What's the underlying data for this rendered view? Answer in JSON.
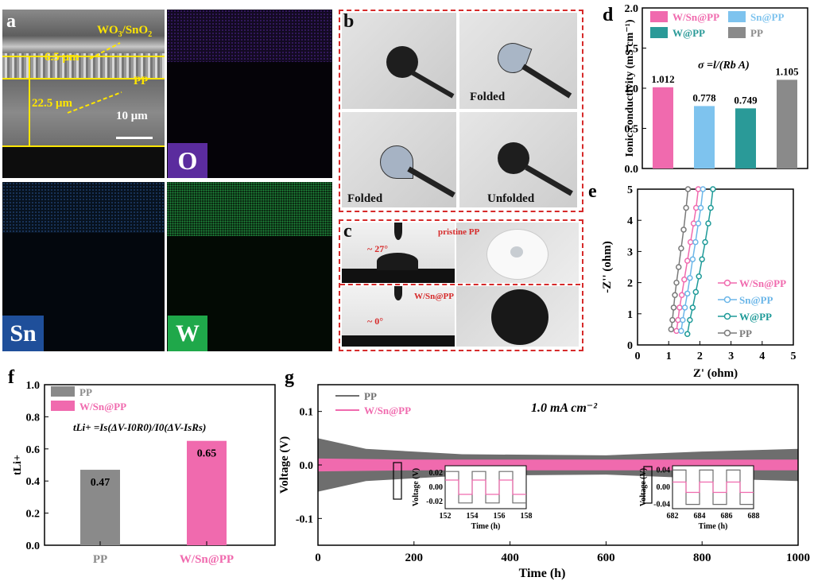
{
  "panel_a": {
    "letter": "a",
    "label_top": "WO3/SnO2",
    "label_pp": "PP",
    "thick1": "6.5 μm",
    "thick2": "22.5 μm",
    "scale": "10 μm",
    "maps": [
      "O",
      "Sn",
      "W"
    ],
    "colors": {
      "O": "#5b2c9e",
      "Sn": "#1f4f9a",
      "W": "#1fa84a"
    }
  },
  "panel_b": {
    "letter": "b",
    "captions": [
      "Folded",
      "Folded",
      "Unfolded"
    ]
  },
  "panel_c": {
    "letter": "c",
    "top_label": "pristine PP",
    "top_angle": "~ 27°",
    "bot_label": "W/Sn@PP",
    "bot_angle": "~ 0°"
  },
  "chart_data": [
    {
      "panel": "d",
      "type": "bar",
      "ylabel": "Ionic conductivity (mS cm⁻¹)",
      "formula": "σ =l/(Rb A)",
      "categories": [
        "W/Sn@PP",
        "Sn@PP",
        "W@PP",
        "PP"
      ],
      "values": [
        1.012,
        0.778,
        0.749,
        1.105
      ],
      "value_labels": [
        "1.012",
        "0.778",
        "0.749",
        "1.105"
      ],
      "colors": [
        "#f06aae",
        "#7ec3ee",
        "#2a9a98",
        "#8a8a8a"
      ],
      "ylim": [
        0.0,
        2.0
      ],
      "yticks": [
        "0.0",
        "0.5",
        "1.0",
        "1.5",
        "2.0"
      ],
      "legend": "top-left"
    },
    {
      "panel": "e",
      "type": "scatter",
      "xlabel": "Z' (ohm)",
      "ylabel": "-Z'' (ohm)",
      "xlim": [
        0,
        5
      ],
      "ylim": [
        0,
        5
      ],
      "xticks": [
        "0",
        "1",
        "2",
        "3",
        "4",
        "5"
      ],
      "yticks": [
        "0",
        "1",
        "2",
        "3",
        "4",
        "5"
      ],
      "legend": "right",
      "series": [
        {
          "name": "W/Sn@PP",
          "color": "#f06aae",
          "points": [
            [
              1.25,
              0.45
            ],
            [
              1.3,
              0.8
            ],
            [
              1.35,
              1.2
            ],
            [
              1.42,
              1.6
            ],
            [
              1.5,
              2.1
            ],
            [
              1.6,
              2.7
            ],
            [
              1.7,
              3.3
            ],
            [
              1.8,
              3.9
            ],
            [
              1.88,
              4.4
            ],
            [
              1.95,
              5.0
            ]
          ]
        },
        {
          "name": "Sn@PP",
          "color": "#6bb6e8",
          "points": [
            [
              1.4,
              0.45
            ],
            [
              1.45,
              0.8
            ],
            [
              1.52,
              1.2
            ],
            [
              1.6,
              1.65
            ],
            [
              1.68,
              2.15
            ],
            [
              1.77,
              2.75
            ],
            [
              1.86,
              3.3
            ],
            [
              1.95,
              3.9
            ],
            [
              2.03,
              4.4
            ],
            [
              2.1,
              5.0
            ]
          ]
        },
        {
          "name": "W@PP",
          "color": "#1e9a98",
          "points": [
            [
              1.6,
              0.35
            ],
            [
              1.68,
              0.8
            ],
            [
              1.77,
              1.2
            ],
            [
              1.87,
              1.7
            ],
            [
              1.97,
              2.2
            ],
            [
              2.07,
              2.75
            ],
            [
              2.17,
              3.3
            ],
            [
              2.27,
              3.9
            ],
            [
              2.35,
              4.4
            ],
            [
              2.42,
              5.0
            ]
          ]
        },
        {
          "name": "PP",
          "color": "#7a7a7a",
          "points": [
            [
              1.08,
              0.5
            ],
            [
              1.12,
              0.8
            ],
            [
              1.16,
              1.2
            ],
            [
              1.2,
              1.6
            ],
            [
              1.25,
              2.0
            ],
            [
              1.32,
              2.5
            ],
            [
              1.4,
              3.1
            ],
            [
              1.48,
              3.7
            ],
            [
              1.56,
              4.4
            ],
            [
              1.62,
              5.0
            ]
          ]
        }
      ]
    },
    {
      "panel": "f",
      "type": "bar",
      "ylabel": "tLi+",
      "formula": "tLi+ =Is(ΔV-I0R0)/I0(ΔV-IsRs)",
      "categories": [
        "PP",
        "W/Sn@PP"
      ],
      "values": [
        0.47,
        0.65
      ],
      "value_labels": [
        "0.47",
        "0.65"
      ],
      "colors": [
        "#8a8a8a",
        "#f06aae"
      ],
      "ylim": [
        0.0,
        1.0
      ],
      "yticks": [
        "0.0",
        "0.2",
        "0.4",
        "0.6",
        "0.8",
        "1.0"
      ],
      "legend": "top-left"
    },
    {
      "panel": "g",
      "type": "line",
      "xlabel": "Time (h)",
      "ylabel": "Voltage (V)",
      "annotation": "1.0 mA cm⁻²",
      "xlim": [
        0,
        1000
      ],
      "ylim": [
        -0.15,
        0.15
      ],
      "xticks": [
        "0",
        "200",
        "400",
        "600",
        "800",
        "1000"
      ],
      "yticks": [
        "-0.1",
        "0.0",
        "0.1"
      ],
      "legend": "top-left",
      "series": [
        {
          "name": "PP",
          "color": "#6e6e6e",
          "band": [
            [
              0,
              0.05
            ],
            [
              100,
              0.03
            ],
            [
              300,
              0.02
            ],
            [
              600,
              0.018
            ],
            [
              800,
              0.025
            ],
            [
              1000,
              0.03
            ]
          ]
        },
        {
          "name": "W/Sn@PP",
          "color": "#f06aae",
          "band": [
            [
              0,
              0.012
            ],
            [
              200,
              0.01
            ],
            [
              600,
              0.01
            ],
            [
              1000,
              0.01
            ]
          ]
        }
      ],
      "insets": [
        {
          "xlim": [
            152,
            158
          ],
          "ylim": [
            -0.03,
            0.03
          ],
          "xticks": [
            "152",
            "154",
            "156",
            "158"
          ],
          "yticks": [
            "-0.02",
            "0.00",
            "0.02"
          ],
          "xlabel": "Time (h)",
          "ylabel": "Voltage (V)",
          "pp_amp": 0.022,
          "wsn_amp": 0.01
        },
        {
          "xlim": [
            682,
            688
          ],
          "ylim": [
            -0.05,
            0.05
          ],
          "xticks": [
            "682",
            "684",
            "686",
            "688"
          ],
          "yticks": [
            "-0.04",
            "0.00",
            "0.04"
          ],
          "xlabel": "Time (h)",
          "ylabel": "Voltage (V)",
          "pp_amp": 0.04,
          "wsn_amp": 0.012
        }
      ]
    }
  ]
}
